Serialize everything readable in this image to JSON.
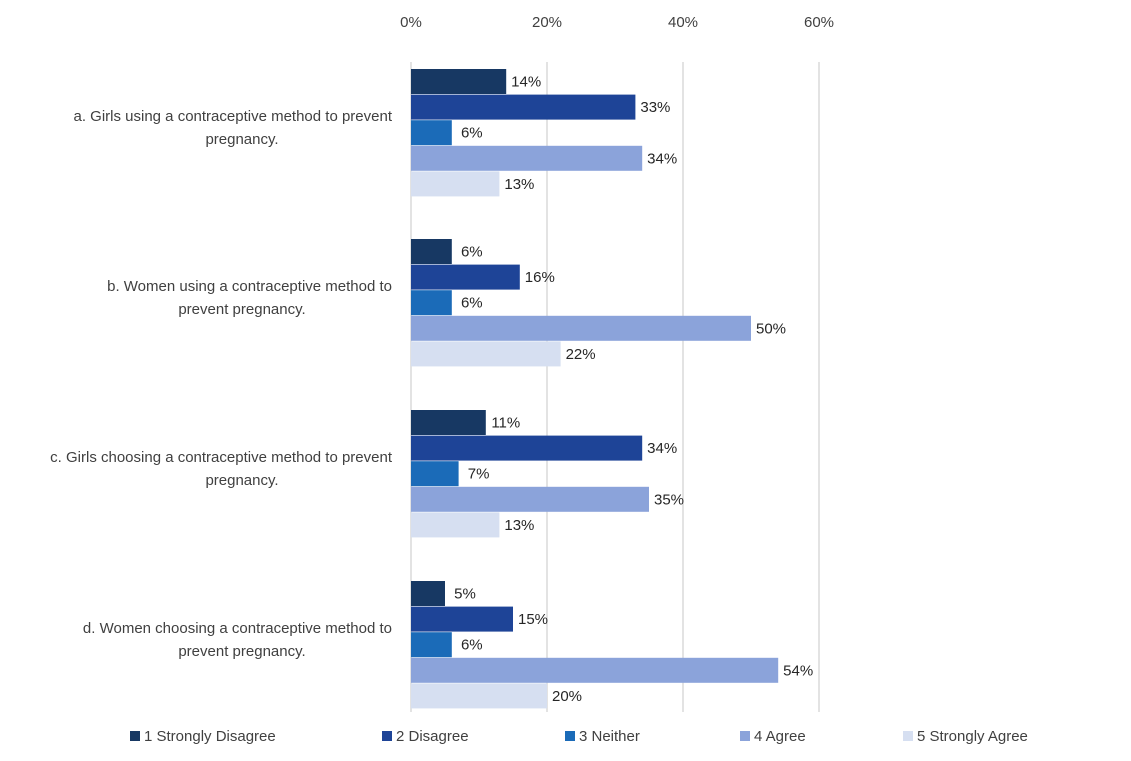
{
  "chart_data": {
    "type": "bar",
    "orientation": "horizontal",
    "categories": [
      [
        "a. Girls using a contraceptive method to prevent",
        "pregnancy."
      ],
      [
        "b. Women using a contraceptive method to",
        "prevent pregnancy."
      ],
      [
        "c. Girls choosing a contraceptive method to prevent",
        "pregnancy."
      ],
      [
        "d. Women choosing a contraceptive method to",
        "prevent pregnancy."
      ]
    ],
    "series": [
      {
        "name": "1 Strongly Disagree",
        "color": "#173863",
        "values": [
          14,
          6,
          11,
          5
        ]
      },
      {
        "name": "2 Disagree",
        "color": "#1E4497",
        "values": [
          33,
          16,
          34,
          15
        ]
      },
      {
        "name": "3 Neither",
        "color": "#1B6BB8",
        "values": [
          6,
          6,
          7,
          6
        ]
      },
      {
        "name": "4 Agree",
        "color": "#8BA3DA",
        "values": [
          34,
          50,
          35,
          54
        ]
      },
      {
        "name": "5 Strongly Agree",
        "color": "#D6DFF1",
        "values": [
          13,
          22,
          13,
          20
        ]
      }
    ],
    "xticks": [
      "0%",
      "20%",
      "40%",
      "60%"
    ],
    "xlim": [
      0,
      60
    ],
    "value_suffix": "%",
    "grid": true,
    "legend": "bottom",
    "gridline_color": "#D0D0D0"
  }
}
